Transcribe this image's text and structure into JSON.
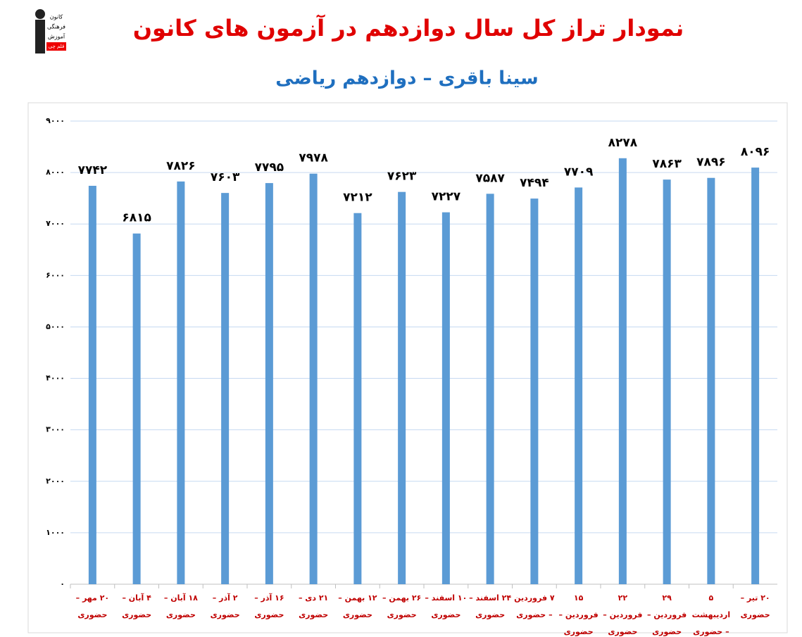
{
  "logo": [
    "کانون",
    "فرهنگی",
    "آموزش",
    "قلم چی"
  ],
  "chart_data": {
    "type": "bar",
    "title": "نمودار تراز کل سال دوازدهم در آزمون های کانون",
    "subtitle": "سینا باقری – دوازدهم ریاضی",
    "categories": [
      "۲۰ مهر – حضوری",
      "۴ آبان – حضوری",
      "۱۸ آبان – حضوری",
      "۲ آذر – حضوری",
      "۱۶ آذر – حضوری",
      "۲۱ دی – حضوری",
      "۱۲ بهمن – حضوری",
      "۲۶ بهمن – حضوری",
      "۱۰ اسفند – حضوری",
      "۲۴ اسفند – حضوری",
      "۷ فروردین – حضوری",
      "۱۵ فروردین – حضوری",
      "۲۲ فروردین – حضوری",
      "۲۹ فروردین – حضوری",
      "۵ اردیبهشت – حضوری",
      "۲۰ تیر – حضوری"
    ],
    "values": [
      7742,
      6815,
      7826,
      7603,
      7795,
      7978,
      7212,
      7623,
      7227,
      7587,
      7494,
      7709,
      8278,
      7863,
      7896,
      8096
    ],
    "value_labels": [
      "۷۷۴۲",
      "۶۸۱۵",
      "۷۸۲۶",
      "۷۶۰۳",
      "۷۷۹۵",
      "۷۹۷۸",
      "۷۲۱۲",
      "۷۶۲۳",
      "۷۲۲۷",
      "۷۵۸۷",
      "۷۴۹۴",
      "۷۷۰۹",
      "۸۲۷۸",
      "۷۸۶۳",
      "۷۸۹۶",
      "۸۰۹۶"
    ],
    "color": "#5b9bd5",
    "ylim": [
      0,
      9000
    ],
    "yticks": [
      {
        "value": 0,
        "label": "۰"
      },
      {
        "value": 1000,
        "label": "۱۰۰۰"
      },
      {
        "value": 2000,
        "label": "۲۰۰۰"
      },
      {
        "value": 3000,
        "label": "۳۰۰۰"
      },
      {
        "value": 4000,
        "label": "۴۰۰۰"
      },
      {
        "value": 5000,
        "label": "۵۰۰۰"
      },
      {
        "value": 6000,
        "label": "۶۰۰۰"
      },
      {
        "value": 7000,
        "label": "۷۰۰۰"
      },
      {
        "value": 8000,
        "label": "۸۰۰۰"
      },
      {
        "value": 9000,
        "label": "۹۰۰۰"
      }
    ],
    "grid": true
  }
}
